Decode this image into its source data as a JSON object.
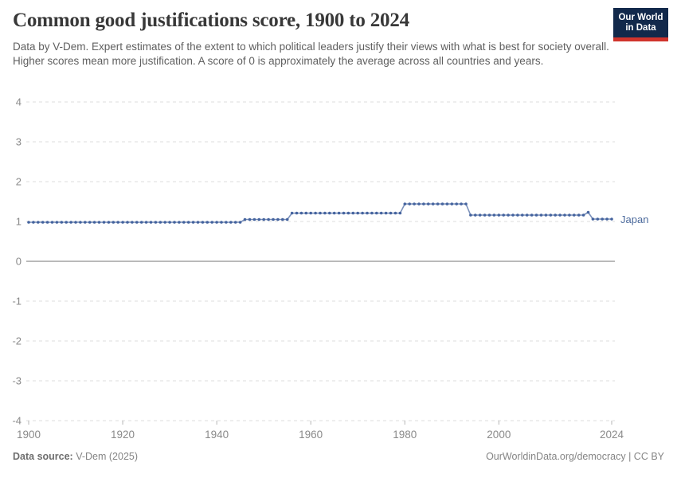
{
  "header": {
    "title": "Common good justifications score, 1900 to 2024",
    "subtitle": "Data by V-Dem. Expert estimates of the extent to which political leaders justify their views with what is best for society overall. Higher scores mean more justification. A score of 0 is approximately the average across all countries and years.",
    "logo": {
      "line1": "Our World",
      "line2": "in Data",
      "bg_color": "#12294b",
      "accent_color": "#d0342c"
    }
  },
  "chart_data": {
    "type": "line",
    "title": "Common good justifications score, 1900 to 2024",
    "xlabel": "",
    "ylabel": "",
    "xlim": [
      1900,
      2024
    ],
    "ylim": [
      -4,
      4
    ],
    "grid": "horizontal dashed gridlines, solid darker line at 0",
    "x_ticks": [
      1900,
      1920,
      1940,
      1960,
      1980,
      2000,
      2024
    ],
    "y_ticks": [
      -4,
      -3,
      -2,
      -1,
      0,
      1,
      2,
      3,
      4
    ],
    "legend_position": "right-of-line-label",
    "series": [
      {
        "name": "Japan",
        "color": "#4C6A9C",
        "marker_color": "#44639e",
        "line_color": "#7a90ba",
        "steps": [
          {
            "start_year": 1900,
            "end_year": 1945,
            "value": 0.98
          },
          {
            "start_year": 1946,
            "end_year": 1955,
            "value": 1.05
          },
          {
            "start_year": 1956,
            "end_year": 1979,
            "value": 1.21
          },
          {
            "start_year": 1980,
            "end_year": 1993,
            "value": 1.44
          },
          {
            "start_year": 1994,
            "end_year": 2018,
            "value": 1.16
          },
          {
            "start_year": 2019,
            "end_year": 2019,
            "value": 1.23
          },
          {
            "start_year": 2020,
            "end_year": 2024,
            "value": 1.06
          }
        ]
      }
    ],
    "colors": {
      "gridline": "#dcdcdc",
      "zero_line": "#a3a3a3",
      "tick_label": "#8a8a8a"
    }
  },
  "footer": {
    "data_source_label": "Data source:",
    "data_source_value": " V-Dem (2025)",
    "attribution": "OurWorldinData.org/democracy | CC BY"
  }
}
